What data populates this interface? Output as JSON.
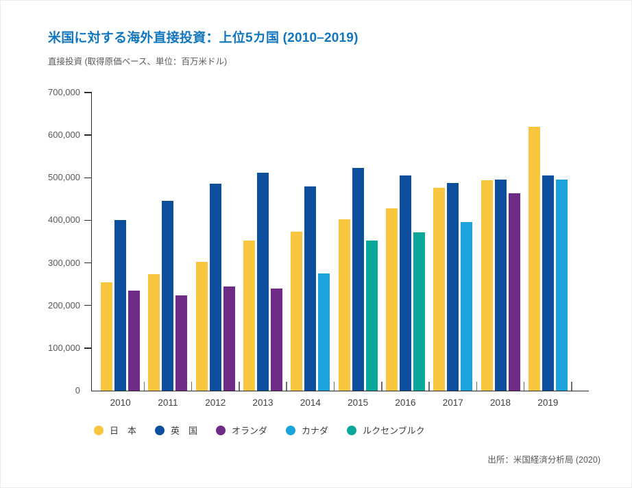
{
  "header": {
    "title": "米国に対する海外直接投資：上位5カ国 (2010–2019)",
    "subtitle": "直接投資 (取得原価ベース、単位：百万米ドル)"
  },
  "source_note": "出所：米国経済分析局 (2020)",
  "colors": {
    "title_accent": "#1276bd",
    "axis_line": "#2b2b2b",
    "tick_label": "#57585a",
    "japan": "#f8c63f",
    "uk": "#0d4f9c",
    "netherlands": "#6f2c87",
    "canada": "#1ca3dc",
    "luxembourg": "#0ba79b"
  },
  "chart_data": {
    "type": "bar",
    "title": "米国に対する海外直接投資：上位5カ国 (2010–2019)",
    "subtitle": "直接投資 (取得原価ベース、単位：百万米ドル)",
    "xlabel": "",
    "ylabel": "",
    "ylim": [
      0,
      700000
    ],
    "y_tick_interval": 100000,
    "y_tick_labels": [
      "0",
      "100,000",
      "200,000",
      "300,000",
      "400,000",
      "500,000",
      "600,000",
      "700,000"
    ],
    "grid": false,
    "legend_position": "bottom",
    "categories": [
      "2010",
      "2011",
      "2012",
      "2013",
      "2014",
      "2015",
      "2016",
      "2017",
      "2018",
      "2019"
    ],
    "series": [
      {
        "name": "日　本",
        "color_key": "japan",
        "values": [
          255000,
          274000,
          302000,
          352000,
          373000,
          403000,
          428000,
          476000,
          494000,
          620000
        ]
      },
      {
        "name": "英　国",
        "color_key": "uk",
        "values": [
          401000,
          446000,
          486000,
          511000,
          480000,
          523000,
          505000,
          487000,
          496000,
          506000
        ]
      },
      {
        "name": "オランダ",
        "color_key": "netherlands",
        "values": [
          235000,
          223000,
          245000,
          240000,
          null,
          null,
          null,
          null,
          463000,
          null
        ]
      },
      {
        "name": "カナダ",
        "color_key": "canada",
        "values": [
          null,
          null,
          null,
          null,
          275000,
          null,
          null,
          396000,
          null,
          496000
        ]
      },
      {
        "name": "ルクセンブルク",
        "color_key": "luxembourg",
        "values": [
          null,
          null,
          null,
          null,
          null,
          352000,
          371000,
          null,
          null,
          null
        ]
      }
    ]
  }
}
